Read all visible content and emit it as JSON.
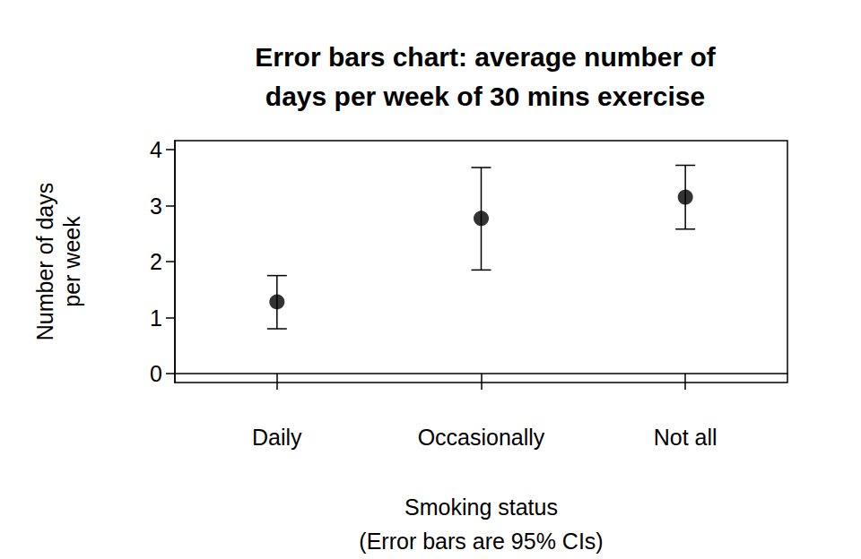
{
  "chart_data": {
    "type": "errorbar",
    "title": "Error bars chart: average number of\ndays per week of 30 mins exercise",
    "xlabel": "Smoking status\n(Error bars are 95% CIs)",
    "ylabel": "Number of days\nper week",
    "categories": [
      "Daily",
      "Occasionally",
      "Not all"
    ],
    "values": [
      1.28,
      2.77,
      3.15
    ],
    "ci_lower": [
      0.8,
      1.85,
      2.58
    ],
    "ci_upper": [
      1.75,
      3.68,
      3.72
    ],
    "color": "#000000",
    "marker": "circle",
    "ylim": [
      -0.16,
      4.16
    ],
    "yticks": [
      0,
      1,
      2,
      3,
      4
    ],
    "grid": false
  }
}
